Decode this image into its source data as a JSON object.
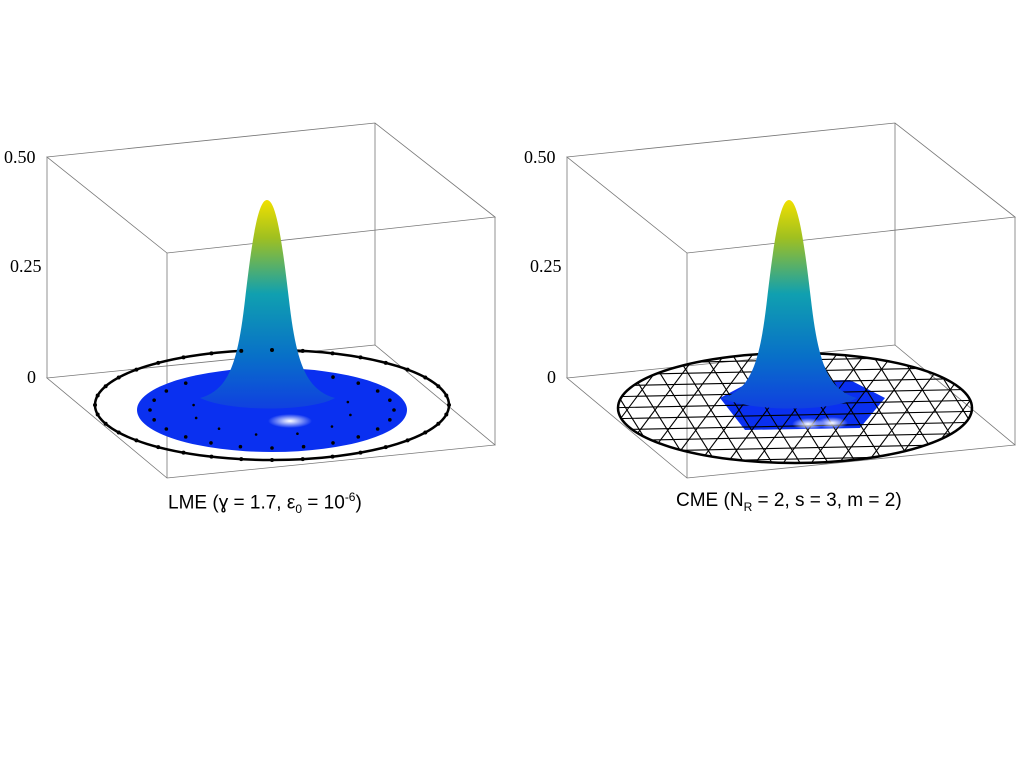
{
  "chart_data": [
    {
      "type": "surface",
      "caption": {
        "prefix": "LME (",
        "gamma_sym": "ɣ",
        "gamma_eq": " = 1.7, ",
        "eps_sym": "ε",
        "eps_sub": "0",
        "eps_eq": " = 10",
        "eps_sup": "-6",
        "suffix": ")"
      },
      "zticks": [
        "0",
        "0.25",
        "0.50"
      ],
      "zlim": [
        0,
        0.5
      ],
      "peak_value": 0.4,
      "domain": "disk",
      "nodes": "scattered",
      "colormap": [
        "#0000ff",
        "#00a0c0",
        "#e8e000"
      ]
    },
    {
      "type": "surface",
      "caption": {
        "prefix": "CME (N",
        "nr_sub": "R",
        "rest": " = 2, s = 3, m = 2)"
      },
      "zticks": [
        "0",
        "0.25",
        "0.50"
      ],
      "zlim": [
        0,
        0.5
      ],
      "peak_value": 0.4,
      "domain": "disk",
      "nodes": "triangular mesh",
      "colormap": [
        "#0000ff",
        "#00a0c0",
        "#e8e000"
      ]
    }
  ]
}
